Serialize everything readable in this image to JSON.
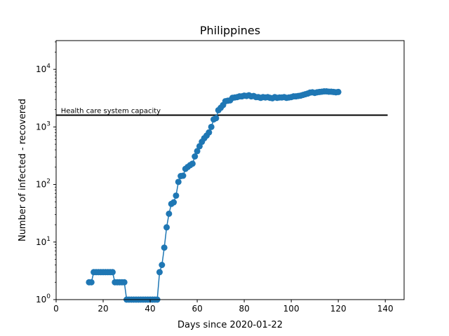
{
  "chart_data": {
    "type": "line",
    "title": "Philippines",
    "xlabel": "Days since 2020-01-22",
    "ylabel": "Number of infected - recovered",
    "xlim": [
      0,
      148
    ],
    "ylim": [
      1,
      31623
    ],
    "yscale": "log",
    "xticks": [
      0,
      20,
      40,
      60,
      80,
      100,
      120,
      140
    ],
    "yticks": [
      {
        "value": 1,
        "base": "10",
        "exp": "0"
      },
      {
        "value": 10,
        "base": "10",
        "exp": "1"
      },
      {
        "value": 100,
        "base": "10",
        "exp": "2"
      },
      {
        "value": 1000,
        "base": "10",
        "exp": "3"
      },
      {
        "value": 10000,
        "base": "10",
        "exp": "4"
      }
    ],
    "grid": false,
    "line_color": "#1f77b4",
    "capacity": {
      "label": "Health care system capacity",
      "value": 1600,
      "x_range": [
        0,
        141
      ],
      "color": "#000000"
    },
    "series": [
      {
        "x": [
          14,
          15,
          16,
          17,
          18,
          19,
          20,
          21,
          22,
          23,
          24,
          25,
          26,
          27,
          28,
          29,
          30,
          31,
          32,
          33,
          34,
          35,
          36,
          37,
          38,
          39,
          40,
          41,
          42,
          43,
          44,
          45,
          46,
          47,
          48,
          49,
          50,
          51,
          52,
          53,
          54,
          55,
          56,
          57,
          58,
          59,
          60,
          61,
          62,
          63,
          64,
          65,
          66,
          67,
          68,
          69,
          70,
          71,
          72,
          73,
          74,
          75,
          76,
          77,
          78,
          79,
          80,
          81,
          82,
          83,
          84,
          85,
          86,
          87,
          88,
          89,
          90,
          91,
          92,
          93,
          94,
          95,
          96,
          97,
          98,
          99,
          100,
          101,
          102,
          103,
          104,
          105,
          106,
          107,
          108,
          109,
          110,
          111,
          112,
          113,
          114,
          115,
          116,
          117,
          118,
          119,
          120
        ],
        "y": [
          2,
          2,
          3,
          3,
          3,
          3,
          3,
          3,
          3,
          3,
          3,
          2,
          2,
          2,
          2,
          2,
          1,
          1,
          1,
          1,
          1,
          1,
          1,
          1,
          1,
          1,
          1,
          1,
          1,
          1,
          3,
          4,
          8,
          18,
          31,
          46,
          49,
          64,
          111,
          140,
          142,
          187,
          202,
          217,
          230,
          307,
          380,
          462,
          552,
          636,
          707,
          803,
          1000,
          1350,
          1420,
          1950,
          2150,
          2400,
          2800,
          2850,
          2900,
          3200,
          3250,
          3300,
          3400,
          3400,
          3500,
          3450,
          3550,
          3400,
          3450,
          3300,
          3300,
          3200,
          3300,
          3250,
          3300,
          3200,
          3150,
          3300,
          3200,
          3250,
          3250,
          3300,
          3200,
          3250,
          3300,
          3400,
          3400,
          3450,
          3500,
          3600,
          3700,
          3800,
          3950,
          4000,
          3900,
          4000,
          4050,
          4100,
          4150,
          4150,
          4100,
          4100,
          4050,
          4000,
          4050
        ]
      }
    ]
  }
}
